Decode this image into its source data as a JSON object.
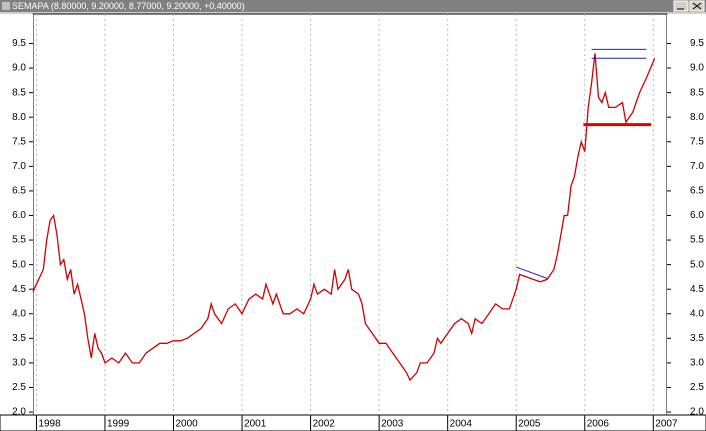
{
  "chart_data": {
    "type": "line",
    "title": "SEMAPA (8.80000, 9.20000, 8.77000, 9.20000, +0.40000)",
    "color": "#d00000",
    "x": [
      1997.95,
      1998.0,
      1998.1,
      1998.15,
      1998.2,
      1998.25,
      1998.3,
      1998.35,
      1998.4,
      1998.45,
      1998.5,
      1998.55,
      1998.6,
      1998.65,
      1998.7,
      1998.75,
      1998.8,
      1998.85,
      1998.9,
      1998.95,
      1999.0,
      1999.1,
      1999.2,
      1999.3,
      1999.4,
      1999.5,
      1999.6,
      1999.7,
      1999.8,
      1999.9,
      2000.0,
      2000.1,
      2000.2,
      2000.3,
      2000.4,
      2000.5,
      2000.55,
      2000.6,
      2000.7,
      2000.8,
      2000.9,
      2001.0,
      2001.1,
      2001.2,
      2001.3,
      2001.35,
      2001.45,
      2001.5,
      2001.6,
      2001.7,
      2001.8,
      2001.9,
      2002.0,
      2002.05,
      2002.1,
      2002.2,
      2002.3,
      2002.35,
      2002.4,
      2002.5,
      2002.55,
      2002.6,
      2002.7,
      2002.75,
      2002.8,
      2002.9,
      2003.0,
      2003.1,
      2003.2,
      2003.3,
      2003.4,
      2003.45,
      2003.55,
      2003.6,
      2003.7,
      2003.8,
      2003.85,
      2003.9,
      2004.0,
      2004.1,
      2004.2,
      2004.3,
      2004.35,
      2004.4,
      2004.5,
      2004.6,
      2004.7,
      2004.8,
      2004.9,
      2005.0,
      2005.05,
      2005.15,
      2005.25,
      2005.35,
      2005.45,
      2005.55,
      2005.6,
      2005.65,
      2005.7,
      2005.75,
      2005.8,
      2005.85,
      2005.9,
      2005.95,
      2006.0,
      2006.05,
      2006.1,
      2006.15,
      2006.2,
      2006.25,
      2006.3,
      2006.35,
      2006.45,
      2006.55,
      2006.6,
      2006.7,
      2006.8,
      2006.9,
      2007.02
    ],
    "values": [
      4.45,
      4.6,
      4.9,
      5.5,
      5.9,
      6.0,
      5.6,
      5.0,
      5.1,
      4.7,
      4.9,
      4.4,
      4.6,
      4.3,
      4.0,
      3.5,
      3.1,
      3.6,
      3.3,
      3.2,
      3.0,
      3.1,
      3.0,
      3.2,
      3.0,
      3.0,
      3.2,
      3.3,
      3.4,
      3.4,
      3.45,
      3.45,
      3.5,
      3.6,
      3.7,
      3.9,
      4.2,
      4.0,
      3.8,
      4.1,
      4.2,
      4.0,
      4.3,
      4.4,
      4.3,
      4.6,
      4.2,
      4.4,
      4.0,
      4.0,
      4.1,
      4.0,
      4.3,
      4.6,
      4.4,
      4.5,
      4.4,
      4.9,
      4.5,
      4.7,
      4.9,
      4.5,
      4.4,
      4.2,
      3.8,
      3.6,
      3.4,
      3.4,
      3.2,
      3.0,
      2.8,
      2.65,
      2.8,
      3.0,
      3.0,
      3.2,
      3.5,
      3.4,
      3.6,
      3.8,
      3.9,
      3.8,
      3.6,
      3.9,
      3.8,
      4.0,
      4.2,
      4.1,
      4.1,
      4.5,
      4.8,
      4.75,
      4.7,
      4.65,
      4.7,
      4.9,
      5.2,
      5.6,
      6.0,
      6.0,
      6.6,
      6.8,
      7.2,
      7.5,
      7.3,
      8.2,
      8.7,
      9.3,
      8.4,
      8.3,
      8.5,
      8.2,
      8.2,
      8.3,
      7.9,
      8.1,
      8.5,
      8.8,
      9.2
    ],
    "xlim": [
      1997.95,
      2007.2
    ],
    "xticks": [
      1998,
      1999,
      2000,
      2001,
      2002,
      2003,
      2004,
      2005,
      2006,
      2007
    ],
    "ylim": [
      1.94,
      10.1
    ],
    "yticks": [
      {
        "value": 2,
        "label": "2.0"
      },
      2.5,
      {
        "value": 3,
        "label": "3.0"
      },
      3.5,
      {
        "value": 4,
        "label": "4.0"
      },
      4.5,
      {
        "value": 5,
        "label": "5.0"
      },
      5.5,
      {
        "value": 6,
        "label": "6.0"
      },
      6.5,
      {
        "value": 7,
        "label": "7.0"
      },
      7.5,
      {
        "value": 8,
        "label": "8.0"
      },
      8.5,
      {
        "value": 9,
        "label": "9.0"
      },
      9.5
    ],
    "grid": true,
    "annotations": [
      {
        "color": "#2020c0",
        "x": [
          2005.0,
          2005.45
        ],
        "y": [
          4.95,
          4.72
        ]
      },
      {
        "color": "#2020c0",
        "x": [
          2006.1,
          2006.9
        ],
        "y": [
          9.38,
          9.38
        ]
      },
      {
        "color": "#2020c0",
        "x": [
          2006.1,
          2006.9
        ],
        "y": [
          9.2,
          9.2
        ]
      },
      {
        "color": "#e00000",
        "x": [
          2005.98,
          2006.97
        ],
        "y": [
          7.85,
          7.85
        ]
      }
    ]
  }
}
